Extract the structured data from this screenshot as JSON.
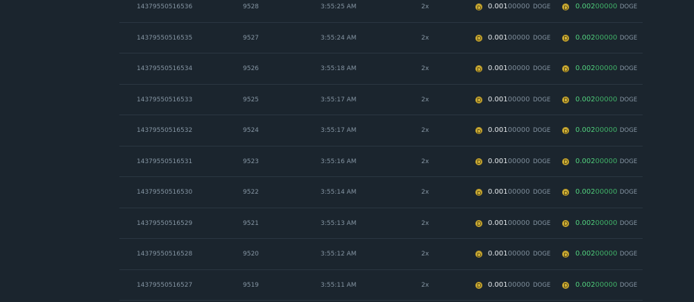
{
  "table": {
    "rows": [
      [
        "14379550516536",
        "9528",
        "3:55:25 AM",
        "2x",
        "0.00100000",
        "DOGE",
        "0.00200000",
        "DOGE"
      ],
      [
        "14379550516535",
        "9527",
        "3:55:24 AM",
        "2x",
        "0.00100000",
        "DOGE",
        "0.00200000",
        "DOGE"
      ],
      [
        "14379550516534",
        "9526",
        "3:55:18 AM",
        "2x",
        "0.00100000",
        "DOGE",
        "0.00200000",
        "DOGE"
      ],
      [
        "14379550516533",
        "9525",
        "3:55:17 AM",
        "2x",
        "0.00100000",
        "DOGE",
        "0.00200000",
        "DOGE"
      ],
      [
        "14379550516532",
        "9524",
        "3:55:17 AM",
        "2x",
        "0.00100000",
        "DOGE",
        "0.00200000",
        "DOGE"
      ],
      [
        "14379550516531",
        "9523",
        "3:55:16 AM",
        "2x",
        "0.00100000",
        "DOGE",
        "0.00200000",
        "DOGE"
      ],
      [
        "14379550516530",
        "9522",
        "3:55:14 AM",
        "2x",
        "0.00100000",
        "DOGE",
        "0.00200000",
        "DOGE"
      ],
      [
        "14379550516529",
        "9521",
        "3:55:13 AM",
        "2x",
        "0.00100000",
        "DOGE",
        "0.00200000",
        "DOGE"
      ],
      [
        "14379550516528",
        "9520",
        "3:55:12 AM",
        "2x",
        "0.00100000",
        "DOGE",
        "0.00200000",
        "DOGE"
      ],
      [
        "14379550516527",
        "9519",
        "3:55:11 AM",
        "2x",
        "0.00100000",
        "DOGE",
        "0.00200000",
        "DOGE"
      ]
    ]
  }
}
